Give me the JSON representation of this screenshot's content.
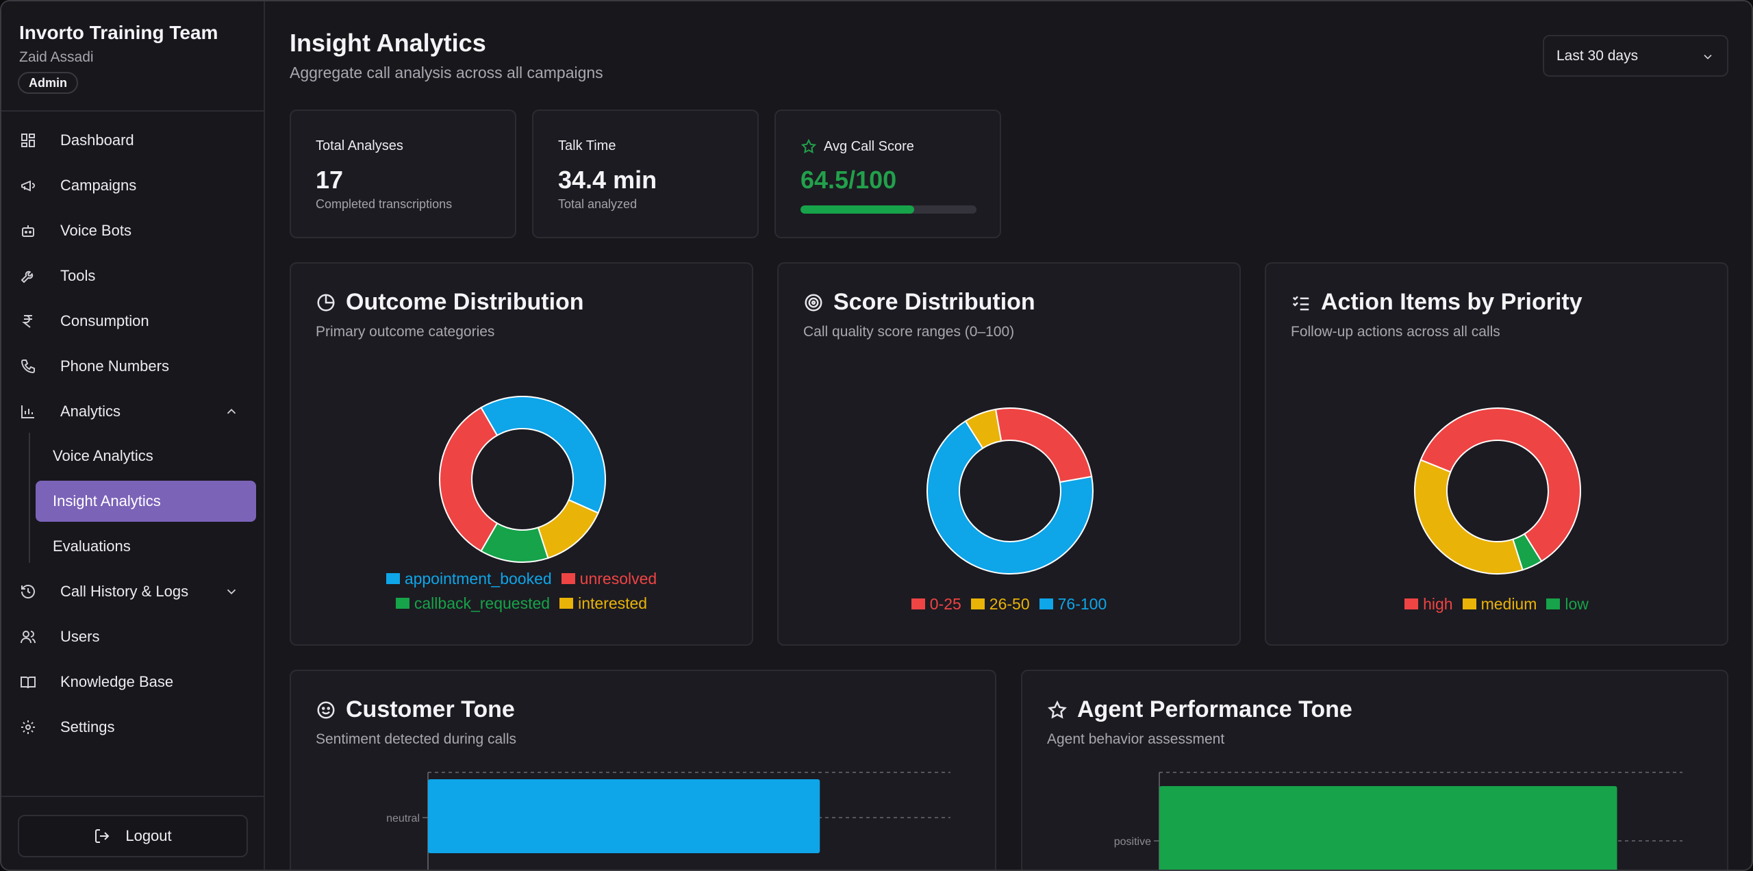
{
  "sidebar": {
    "team": "Invorto Training Team",
    "user": "Zaid Assadi",
    "role": "Admin",
    "items": [
      {
        "label": "Dashboard"
      },
      {
        "label": "Campaigns"
      },
      {
        "label": "Voice Bots"
      },
      {
        "label": "Tools"
      },
      {
        "label": "Consumption"
      },
      {
        "label": "Phone Numbers"
      },
      {
        "label": "Analytics"
      },
      {
        "label": "Call History & Logs"
      },
      {
        "label": "Users"
      },
      {
        "label": "Knowledge Base"
      },
      {
        "label": "Settings"
      }
    ],
    "analytics_sub": [
      {
        "label": "Voice Analytics"
      },
      {
        "label": "Insight Analytics"
      },
      {
        "label": "Evaluations"
      }
    ],
    "logout": "Logout"
  },
  "header": {
    "title": "Insight Analytics",
    "subtitle": "Aggregate call analysis across all campaigns",
    "range": "Last 30 days"
  },
  "stats": {
    "total": {
      "label": "Total Analyses",
      "value": "17",
      "note": "Completed transcriptions"
    },
    "talk": {
      "label": "Talk Time",
      "value": "34.4 min",
      "note": "Total analyzed"
    },
    "score": {
      "label": "Avg Call Score",
      "value": "64.5/100",
      "progress": 0.645
    }
  },
  "cards": {
    "outcome": {
      "title": "Outcome Distribution",
      "subtitle": "Primary outcome categories"
    },
    "score": {
      "title": "Score Distribution",
      "subtitle": "Call quality score ranges (0–100)"
    },
    "action": {
      "title": "Action Items by Priority",
      "subtitle": "Follow-up actions across all calls"
    },
    "customer": {
      "title": "Customer Tone",
      "subtitle": "Sentiment detected during calls"
    },
    "agent": {
      "title": "Agent Performance Tone",
      "subtitle": "Agent behavior assessment"
    }
  },
  "colors": {
    "blue": "#0ea5e9",
    "red": "#ef4444",
    "green": "#16a34a",
    "yellow": "#eab308",
    "accent": "#7b63b8"
  },
  "chart_data": [
    {
      "type": "pie",
      "title": "Outcome Distribution",
      "donut": true,
      "slices": [
        {
          "label": "appointment_booked",
          "value": 6,
          "color": "#0ea5e9"
        },
        {
          "label": "interested",
          "value": 2,
          "color": "#eab308"
        },
        {
          "label": "callback_requested",
          "value": 2,
          "color": "#16a34a"
        },
        {
          "label": "unresolved",
          "value": 5,
          "color": "#ef4444"
        }
      ],
      "legend_rows": [
        [
          "appointment_booked",
          "unresolved"
        ],
        [
          "callback_requested",
          "interested"
        ]
      ]
    },
    {
      "type": "pie",
      "title": "Score Distribution",
      "donut": true,
      "slices": [
        {
          "label": "0-25",
          "value": 4,
          "color": "#ef4444"
        },
        {
          "label": "76-100",
          "value": 11,
          "color": "#0ea5e9"
        },
        {
          "label": "26-50",
          "value": 1,
          "color": "#eab308"
        }
      ],
      "legend_rows": [
        [
          "0-25",
          "26-50",
          "76-100"
        ]
      ]
    },
    {
      "type": "pie",
      "title": "Action Items by Priority",
      "donut": true,
      "slices": [
        {
          "label": "high",
          "value": 15,
          "color": "#ef4444"
        },
        {
          "label": "low",
          "value": 1,
          "color": "#16a34a"
        },
        {
          "label": "medium",
          "value": 9,
          "color": "#eab308"
        }
      ],
      "legend_rows": [
        [
          "high",
          "medium",
          "low"
        ]
      ]
    },
    {
      "type": "bar",
      "orientation": "horizontal",
      "title": "Customer Tone",
      "categories": [
        "neutral"
      ],
      "values": [
        12
      ],
      "xlim": [
        0,
        16
      ],
      "color": "#0ea5e9"
    },
    {
      "type": "bar",
      "orientation": "horizontal",
      "title": "Agent Performance Tone",
      "categories": [
        "positive"
      ],
      "values": [
        14
      ],
      "xlim": [
        0,
        16
      ],
      "color": "#16a34a"
    }
  ]
}
